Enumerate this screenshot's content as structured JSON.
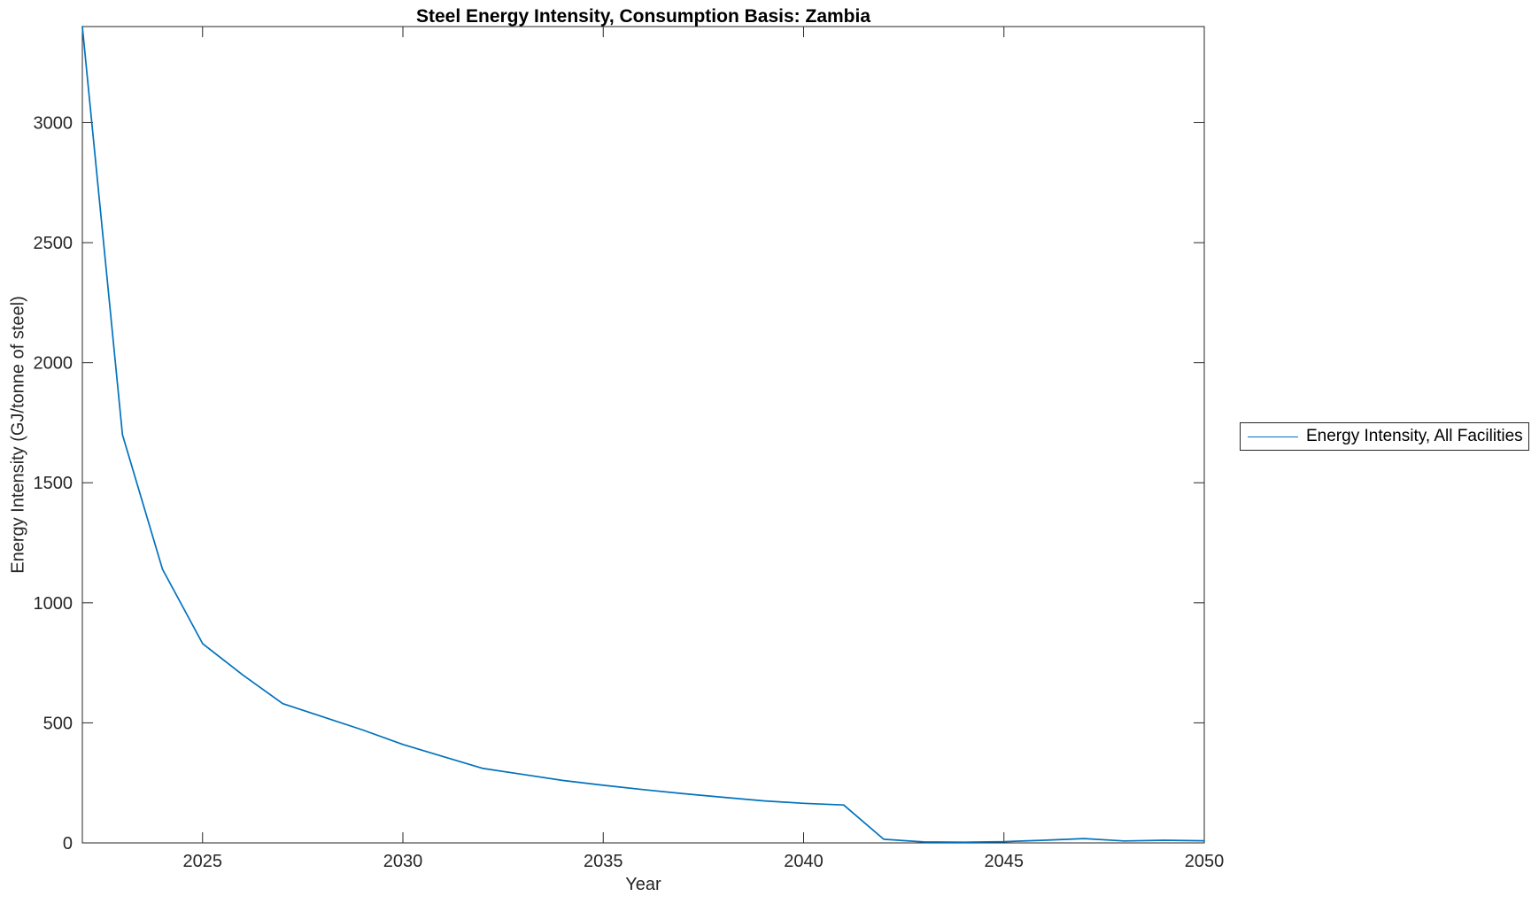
{
  "chart_data": {
    "type": "line",
    "title": "Steel Energy Intensity, Consumption Basis: Zambia",
    "xlabel": "Year",
    "ylabel": "Energy Intensity (GJ/tonne of steel)",
    "xlim": [
      2022,
      2050
    ],
    "ylim": [
      0,
      3400
    ],
    "xticks": [
      2025,
      2030,
      2035,
      2040,
      2045,
      2050
    ],
    "yticks": [
      0,
      500,
      1000,
      1500,
      2000,
      2500,
      3000
    ],
    "grid": false,
    "box": true,
    "tick_direction": "in",
    "legend_position": "outside-right",
    "background_color": "#ffffff",
    "axis_color": "#262626",
    "series": [
      {
        "name": "Energy Intensity, All Facilities",
        "color": "#0072BD",
        "x": [
          2022,
          2023,
          2024,
          2025,
          2026,
          2027,
          2028,
          2029,
          2030,
          2031,
          2032,
          2033,
          2034,
          2035,
          2036,
          2037,
          2038,
          2039,
          2040,
          2041,
          2042,
          2043,
          2044,
          2045,
          2046,
          2047,
          2048,
          2049,
          2050
        ],
        "values": [
          3400,
          1700,
          1140,
          830,
          700,
          580,
          525,
          470,
          410,
          360,
          310,
          285,
          260,
          240,
          222,
          205,
          190,
          175,
          165,
          158,
          15,
          4,
          3,
          5,
          11,
          18,
          8,
          11,
          9
        ]
      }
    ]
  }
}
